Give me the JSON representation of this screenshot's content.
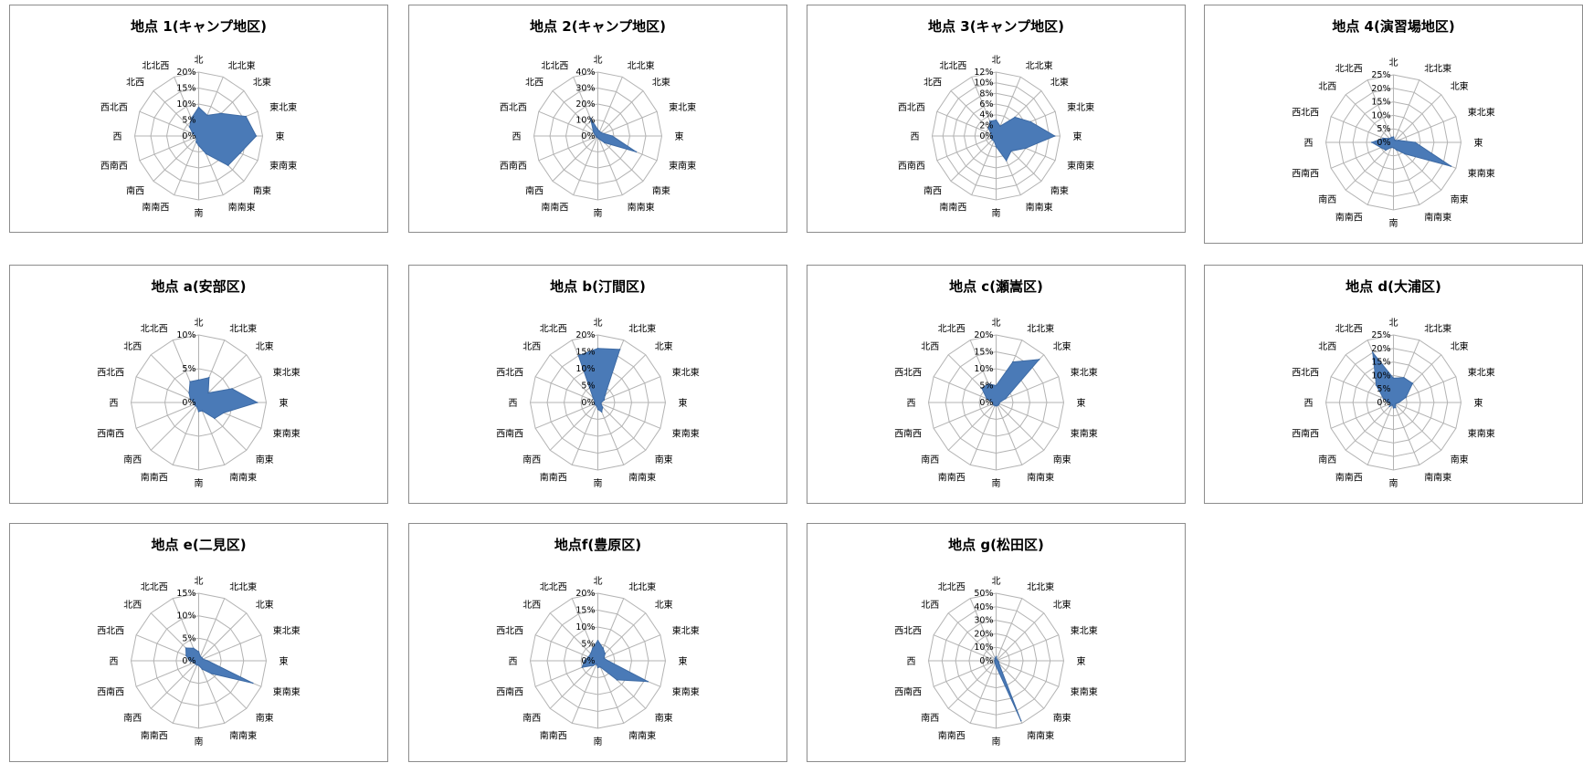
{
  "directions": [
    "北",
    "北北東",
    "北東",
    "東北東",
    "東",
    "東南東",
    "南東",
    "南南東",
    "南",
    "南南西",
    "南西",
    "西南西",
    "西",
    "西北西",
    "北西",
    "北北西"
  ],
  "colors": {
    "series_fill": "#4a7ab7",
    "grid": "#b3b3b3",
    "panel_border": "#8c8c8c"
  },
  "chart_data": [
    {
      "type": "radar",
      "title": "地点 1(キャンプ地区)",
      "rlim": [
        0,
        20
      ],
      "ticks": [
        "0%",
        "5%",
        "10%",
        "15%",
        "20%"
      ],
      "values": [
        9,
        7,
        10,
        16,
        18,
        14,
        13,
        6,
        3,
        2,
        1,
        1,
        1,
        2,
        4,
        6
      ]
    },
    {
      "type": "radar",
      "title": "地点 2(キャンプ地区)",
      "rlim": [
        0,
        40
      ],
      "ticks": [
        "0%",
        "10%",
        "20%",
        "30%",
        "40%"
      ],
      "values": [
        4,
        3,
        3,
        4,
        9,
        26,
        6,
        2,
        1,
        1,
        1,
        1,
        1,
        2,
        4,
        12
      ]
    },
    {
      "type": "radar",
      "title": "地点 3(キャンプ地区)",
      "rlim": [
        0,
        12
      ],
      "ticks": [
        "0%",
        "2%",
        "4%",
        "6%",
        "8%",
        "10%",
        "12%"
      ],
      "values": [
        3,
        2,
        5,
        7,
        11,
        6,
        4,
        5,
        2,
        1,
        1,
        1,
        1,
        1,
        2,
        3
      ]
    },
    {
      "type": "radar",
      "title": "地点 4(演習場地区)",
      "rlim": [
        0,
        25
      ],
      "ticks": [
        "0%",
        "5%",
        "10%",
        "15%",
        "20%",
        "25%"
      ],
      "values": [
        2,
        1,
        1,
        2,
        8,
        23,
        6,
        3,
        2,
        2,
        4,
        5,
        8,
        4,
        2,
        2
      ]
    },
    {
      "type": "radar",
      "title": "地点 a(安部区)",
      "rlim": [
        0,
        15
      ],
      "ticks": [
        "0%",
        "5%",
        "10%"
      ],
      "values": [
        5,
        6,
        3,
        8,
        13,
        6,
        5,
        2,
        2,
        1,
        1,
        1,
        1,
        2,
        3,
        5
      ]
    },
    {
      "type": "radar",
      "title": "地点 b(汀間区)",
      "rlim": [
        0,
        20
      ],
      "ticks": [
        "0%",
        "5%",
        "10%",
        "15%",
        "20%"
      ],
      "values": [
        16,
        17,
        3,
        2,
        1,
        1,
        2,
        3,
        2,
        1,
        1,
        1,
        1,
        1,
        2,
        15
      ]
    },
    {
      "type": "radar",
      "title": "地点 c(瀬嵩区)",
      "rlim": [
        0,
        20
      ],
      "ticks": [
        "0%",
        "5%",
        "10%",
        "15%",
        "20%"
      ],
      "values": [
        5,
        13,
        18,
        3,
        1,
        1,
        1,
        1,
        1,
        1,
        1,
        1,
        1,
        3,
        6,
        6
      ]
    },
    {
      "type": "radar",
      "title": "地点 d(大浦区)",
      "rlim": [
        0,
        25
      ],
      "ticks": [
        "0%",
        "5%",
        "10%",
        "15%",
        "20%",
        "25%"
      ],
      "values": [
        9,
        10,
        10,
        5,
        2,
        1,
        1,
        2,
        2,
        1,
        2,
        1,
        2,
        4,
        9,
        20
      ]
    },
    {
      "type": "radar",
      "title": "地点 e(二見区)",
      "rlim": [
        0,
        15
      ],
      "ticks": [
        "0%",
        "5%",
        "10%",
        "15%"
      ],
      "values": [
        2,
        1,
        1,
        1,
        2,
        13,
        4,
        2,
        1,
        1,
        1,
        1,
        2,
        3,
        4,
        3
      ]
    },
    {
      "type": "radar",
      "title": "地点f(豊原区)",
      "rlim": [
        0,
        20
      ],
      "ticks": [
        "0%",
        "5%",
        "10%",
        "15%",
        "20%"
      ],
      "values": [
        6,
        4,
        3,
        2,
        3,
        16,
        8,
        2,
        2,
        1,
        2,
        5,
        4,
        3,
        3,
        4
      ]
    },
    {
      "type": "radar",
      "title": "地点 g(松田区)",
      "rlim": [
        0,
        50
      ],
      "ticks": [
        "0%",
        "10%",
        "20%",
        "30%",
        "40%",
        "50%"
      ],
      "values": [
        3,
        1,
        1,
        1,
        1,
        2,
        3,
        48,
        4,
        2,
        1,
        1,
        1,
        1,
        1,
        2
      ]
    }
  ]
}
